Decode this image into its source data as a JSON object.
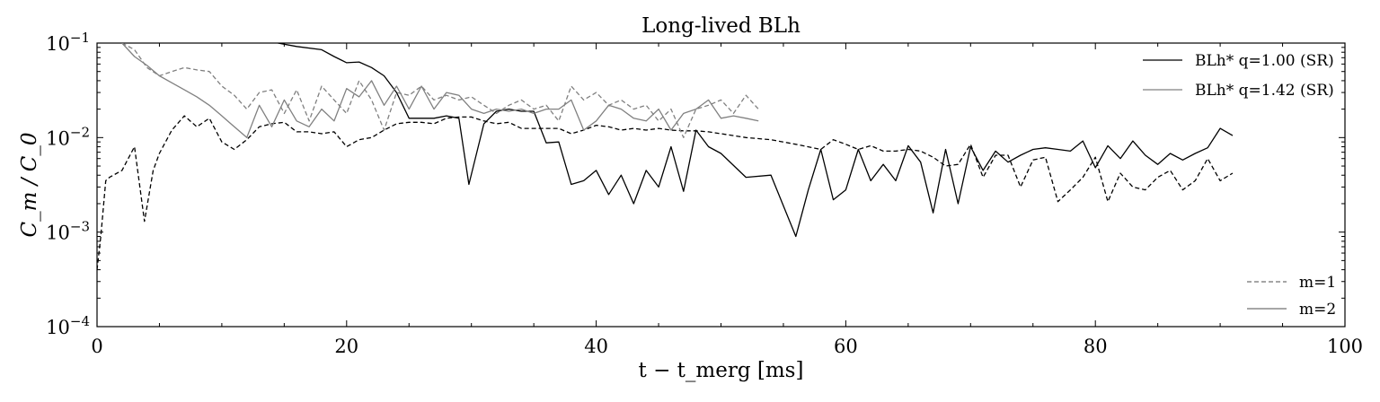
{
  "chart_data": {
    "type": "line",
    "title": "Long-lived BLh",
    "xlabel": "t − t_merg [ms]",
    "ylabel": "C_m / C_0",
    "xlim": [
      0,
      100
    ],
    "ylim": [
      0.0001,
      0.1
    ],
    "yscale": "log",
    "xticks": [
      0,
      20,
      40,
      60,
      80,
      100
    ],
    "yticks": [
      {
        "value": 0.1,
        "base": "10",
        "exp": "−1"
      },
      {
        "value": 0.01,
        "base": "10",
        "exp": "−2"
      },
      {
        "value": 0.001,
        "base": "10",
        "exp": "−3"
      },
      {
        "value": 0.0001,
        "base": "10",
        "exp": "−4"
      }
    ],
    "legend_models": {
      "placement": "top-right",
      "entries": [
        {
          "label": "BLh* q=1.00 (SR)",
          "color": "#000000"
        },
        {
          "label": "BLh* q=1.42 (SR)",
          "color": "#808080"
        }
      ]
    },
    "legend_modes": {
      "placement": "bottom-right",
      "entries": [
        {
          "label": "m=1",
          "style": "dashed"
        },
        {
          "label": "m=2",
          "style": "solid"
        }
      ]
    },
    "series": [
      {
        "model": "BLh* q=1.00 (SR)",
        "mode": "m=2",
        "color": "#000000",
        "style": "solid",
        "x": [
          14.5,
          16,
          18,
          19,
          20,
          21,
          22,
          23,
          24,
          25,
          26,
          27,
          28,
          29,
          29.8,
          31,
          32,
          33,
          34,
          35,
          36,
          37,
          38,
          39,
          40,
          41,
          42,
          43,
          44,
          45,
          46,
          47,
          48,
          49,
          50,
          52,
          54,
          56,
          57,
          58,
          59,
          60,
          61,
          62,
          63,
          64,
          65,
          66,
          67,
          68,
          69,
          70,
          71,
          72,
          73,
          74,
          75,
          76,
          77,
          78,
          79,
          80,
          81,
          82,
          83,
          84,
          85,
          86,
          87,
          88,
          89,
          90,
          91
        ],
        "y": [
          0.1,
          0.092,
          0.085,
          0.072,
          0.062,
          0.063,
          0.055,
          0.045,
          0.03,
          0.016,
          0.016,
          0.016,
          0.017,
          0.016,
          0.0032,
          0.014,
          0.019,
          0.02,
          0.019,
          0.019,
          0.0088,
          0.009,
          0.0032,
          0.0035,
          0.0045,
          0.0025,
          0.004,
          0.002,
          0.0045,
          0.003,
          0.008,
          0.0027,
          0.012,
          0.008,
          0.0068,
          0.0038,
          0.004,
          0.0009,
          0.0028,
          0.0075,
          0.0022,
          0.0028,
          0.0075,
          0.0035,
          0.0052,
          0.0035,
          0.0082,
          0.0055,
          0.0016,
          0.0075,
          0.002,
          0.008,
          0.0045,
          0.0072,
          0.0055,
          0.0065,
          0.0075,
          0.0078,
          0.0075,
          0.0072,
          0.0092,
          0.0048,
          0.0082,
          0.006,
          0.0092,
          0.0065,
          0.0052,
          0.0068,
          0.0058,
          0.0068,
          0.0078,
          0.0125,
          0.0105
        ]
      },
      {
        "model": "BLh* q=1.00 (SR)",
        "mode": "m=1",
        "color": "#000000",
        "style": "dashed",
        "x": [
          0,
          0.3,
          0.7,
          1,
          2,
          3,
          3.8,
          4.5,
          5,
          6,
          7,
          8,
          9,
          10,
          11,
          12,
          13,
          14,
          15,
          16,
          17,
          18,
          19,
          20,
          21,
          22,
          23,
          24,
          25,
          26,
          27,
          28,
          29,
          30,
          31,
          32,
          33,
          34,
          35,
          36,
          37,
          38,
          39,
          40,
          41,
          42,
          43,
          44,
          45,
          46,
          47,
          48,
          49,
          50,
          52,
          54,
          56,
          58,
          59,
          60,
          61,
          62,
          63,
          64,
          65,
          66,
          67,
          68,
          69,
          70,
          71,
          72,
          73,
          74,
          75,
          76,
          77,
          78,
          79,
          80,
          81,
          82,
          83,
          84,
          85,
          86,
          87,
          88,
          89,
          90,
          91
        ],
        "y": [
          0.0004,
          0.0009,
          0.0035,
          0.0038,
          0.0045,
          0.008,
          0.0013,
          0.0045,
          0.0068,
          0.012,
          0.017,
          0.013,
          0.016,
          0.009,
          0.0075,
          0.0095,
          0.013,
          0.014,
          0.0145,
          0.0115,
          0.0115,
          0.011,
          0.0115,
          0.008,
          0.0095,
          0.01,
          0.012,
          0.014,
          0.0145,
          0.0145,
          0.014,
          0.016,
          0.0165,
          0.0165,
          0.015,
          0.014,
          0.0145,
          0.0125,
          0.0125,
          0.0125,
          0.0125,
          0.011,
          0.012,
          0.0135,
          0.013,
          0.012,
          0.0125,
          0.012,
          0.0125,
          0.012,
          0.0118,
          0.0118,
          0.0115,
          0.011,
          0.01,
          0.0095,
          0.0085,
          0.0075,
          0.0095,
          0.0085,
          0.0075,
          0.0082,
          0.0072,
          0.0072,
          0.0075,
          0.0072,
          0.0062,
          0.005,
          0.0052,
          0.0085,
          0.0038,
          0.0065,
          0.0065,
          0.003,
          0.0058,
          0.0062,
          0.0021,
          0.0028,
          0.0038,
          0.0062,
          0.0021,
          0.0042,
          0.003,
          0.0028,
          0.0038,
          0.0045,
          0.0028,
          0.0035,
          0.006,
          0.0035,
          0.0042
        ]
      },
      {
        "model": "BLh* q=1.42 (SR)",
        "mode": "m=2",
        "color": "#808080",
        "style": "solid",
        "x": [
          2,
          3,
          4,
          5,
          6,
          7,
          8,
          9,
          10,
          11,
          12,
          13,
          14,
          15,
          16,
          17,
          18,
          19,
          20,
          21,
          22,
          23,
          24,
          25,
          26,
          27,
          28,
          29,
          30,
          31,
          32,
          33,
          34,
          35,
          36,
          37,
          38,
          39,
          40,
          41,
          42,
          43,
          44,
          45,
          46,
          47,
          48,
          49,
          50,
          51,
          52,
          53
        ],
        "y": [
          0.1,
          0.072,
          0.058,
          0.045,
          0.038,
          0.032,
          0.027,
          0.022,
          0.017,
          0.013,
          0.01,
          0.022,
          0.013,
          0.025,
          0.015,
          0.013,
          0.02,
          0.015,
          0.033,
          0.027,
          0.04,
          0.022,
          0.035,
          0.02,
          0.035,
          0.02,
          0.03,
          0.028,
          0.02,
          0.018,
          0.02,
          0.019,
          0.02,
          0.018,
          0.02,
          0.02,
          0.025,
          0.012,
          0.015,
          0.022,
          0.02,
          0.016,
          0.015,
          0.02,
          0.012,
          0.018,
          0.02,
          0.025,
          0.016,
          0.017,
          0.016,
          0.015
        ]
      },
      {
        "model": "BLh* q=1.42 (SR)",
        "mode": "m=1",
        "color": "#808080",
        "style": "dashed",
        "x": [
          2,
          3,
          4,
          5,
          6,
          7,
          8,
          9,
          10,
          11,
          12,
          13,
          14,
          15,
          16,
          17,
          18,
          19,
          20,
          21,
          22,
          23,
          24,
          25,
          26,
          27,
          28,
          29,
          30,
          31,
          32,
          33,
          34,
          35,
          36,
          37,
          38,
          39,
          40,
          41,
          42,
          43,
          44,
          45,
          46,
          47,
          48,
          49,
          50,
          51,
          52,
          53
        ],
        "y": [
          0.1,
          0.085,
          0.055,
          0.045,
          0.05,
          0.055,
          0.052,
          0.05,
          0.035,
          0.028,
          0.02,
          0.03,
          0.032,
          0.018,
          0.032,
          0.015,
          0.035,
          0.025,
          0.018,
          0.04,
          0.025,
          0.012,
          0.03,
          0.028,
          0.035,
          0.025,
          0.028,
          0.025,
          0.027,
          0.022,
          0.018,
          0.022,
          0.025,
          0.02,
          0.022,
          0.015,
          0.035,
          0.025,
          0.03,
          0.022,
          0.025,
          0.02,
          0.022,
          0.015,
          0.02,
          0.01,
          0.02,
          0.022,
          0.025,
          0.018,
          0.028,
          0.02
        ]
      }
    ]
  }
}
